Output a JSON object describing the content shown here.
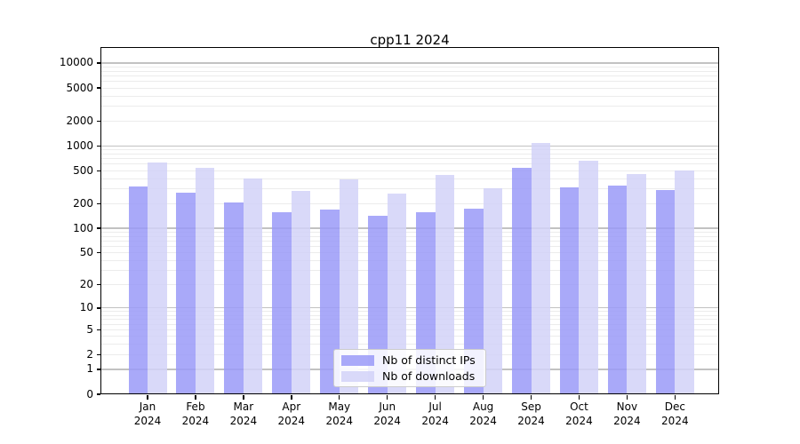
{
  "chart_data": {
    "type": "bar",
    "title": "cpp11 2024",
    "categories": [
      "Jan",
      "Feb",
      "Mar",
      "Apr",
      "May",
      "Jun",
      "Jul",
      "Aug",
      "Sep",
      "Oct",
      "Nov",
      "Dec"
    ],
    "x_second_line": "2024",
    "series": [
      {
        "key": "distinct_ips",
        "name": "Nb of distinct IPs",
        "color": "#a9a9f9",
        "values": [
          320,
          270,
          208,
          158,
          167,
          142,
          158,
          172,
          540,
          315,
          328,
          292
        ]
      },
      {
        "key": "downloads",
        "name": "Nb of downloads",
        "color": "#d9d9f9",
        "values": [
          630,
          540,
          405,
          287,
          390,
          264,
          448,
          304,
          1070,
          660,
          456,
          503
        ]
      }
    ],
    "y_ticks": [
      0,
      1,
      2,
      5,
      10,
      20,
      50,
      100,
      200,
      500,
      1000,
      2000,
      5000,
      10000
    ],
    "yscale": "log10(v+1)",
    "ylim": [
      0,
      15600
    ],
    "grid": true,
    "legend_position": "lower center"
  }
}
